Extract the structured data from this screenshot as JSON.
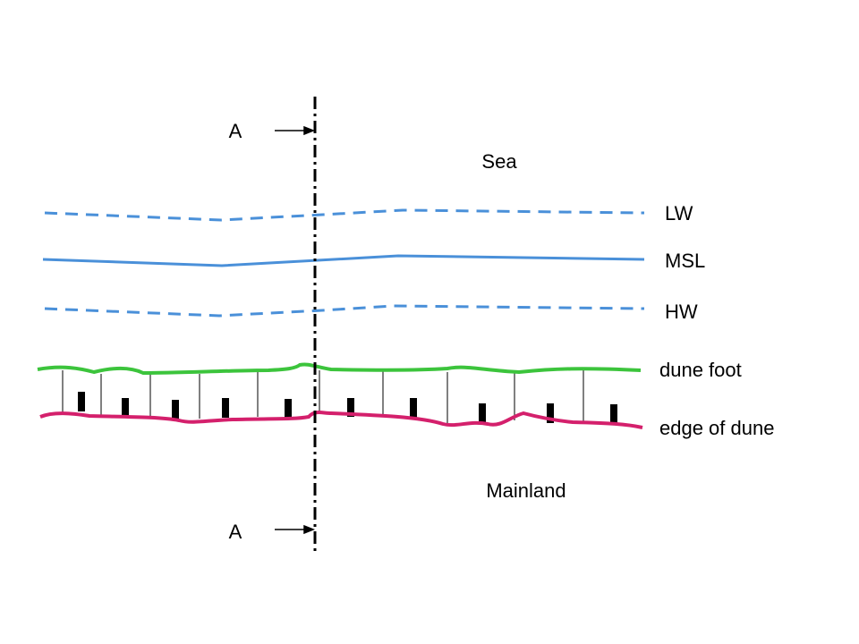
{
  "section_markers": [
    {
      "label": "A"
    },
    {
      "label": "A"
    }
  ],
  "regions": {
    "sea": "Sea",
    "mainland": "Mainland"
  },
  "lines": [
    {
      "label": "LW"
    },
    {
      "label": "MSL"
    },
    {
      "label": "HW"
    },
    {
      "label": "dune foot"
    },
    {
      "label": "edge of dune"
    }
  ]
}
